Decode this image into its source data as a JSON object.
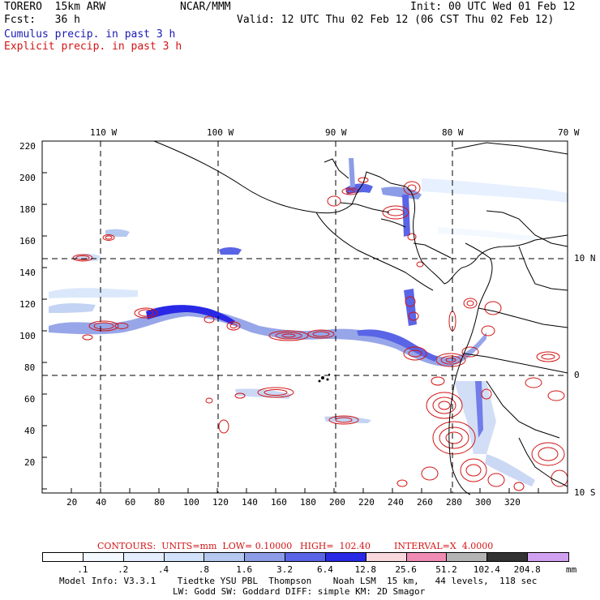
{
  "header": {
    "model": "TORERO  15km ARW",
    "org": "NCAR/MMM",
    "init": "Init: 00 UTC Wed 01 Feb 12",
    "fcst": "Fcst:   36 h",
    "valid": "Valid: 12 UTC Thu 02 Feb 12 (06 CST Thu 02 Feb 12)",
    "field1": "Cumulus precip. in past 3 h",
    "field2": "Explicit precip. in past 3 h"
  },
  "colors": {
    "field1": "#1a1ab4",
    "field2": "#d21414",
    "grid": "#000000"
  },
  "map": {
    "lon_labels": [
      "110 W",
      "100 W",
      "90 W",
      "80 W",
      "70 W"
    ],
    "lat_labels": [
      "10 N",
      "0",
      "10 S"
    ],
    "y_ticks": [
      "220",
      "200",
      "180",
      "160",
      "140",
      "120",
      "100",
      "80",
      "60",
      "40",
      "20"
    ],
    "x_ticks": [
      "20",
      "40",
      "60",
      "80",
      "100",
      "120",
      "140",
      "160",
      "180",
      "200",
      "220",
      "240",
      "260",
      "280",
      "300",
      "320"
    ]
  },
  "contours": {
    "text_units": "CONTOURS:  UNITS=mm  LOW= 0.10000",
    "text_high": "HIGH=  102.40",
    "text_interval": "INTERVAL=X  4.0000"
  },
  "colorbar": {
    "labels": [
      ".1",
      ".2",
      ".4",
      ".8",
      "1.6",
      "3.2",
      "6.4",
      "12.8",
      "25.6",
      "51.2",
      "102.4",
      "204.8"
    ],
    "unit": "mm",
    "colors": [
      "#ffffff",
      "#f4f8ff",
      "#e4eeff",
      "#d2e2fa",
      "#b4c8f0",
      "#8c9ce6",
      "#5a64e6",
      "#2828e6",
      "#f8d8dc",
      "#f08cb4",
      "#b4b4b4",
      "#323232",
      "#d2a0f0"
    ]
  },
  "footer": {
    "line1": "Model Info: V3.3.1    Tiedtke YSU PBL  Thompson    Noah LSM  15 km,   44 levels,  118 sec",
    "line2": "LW: Godd SW: Goddard DIFF: simple KM: 2D Smagor"
  }
}
